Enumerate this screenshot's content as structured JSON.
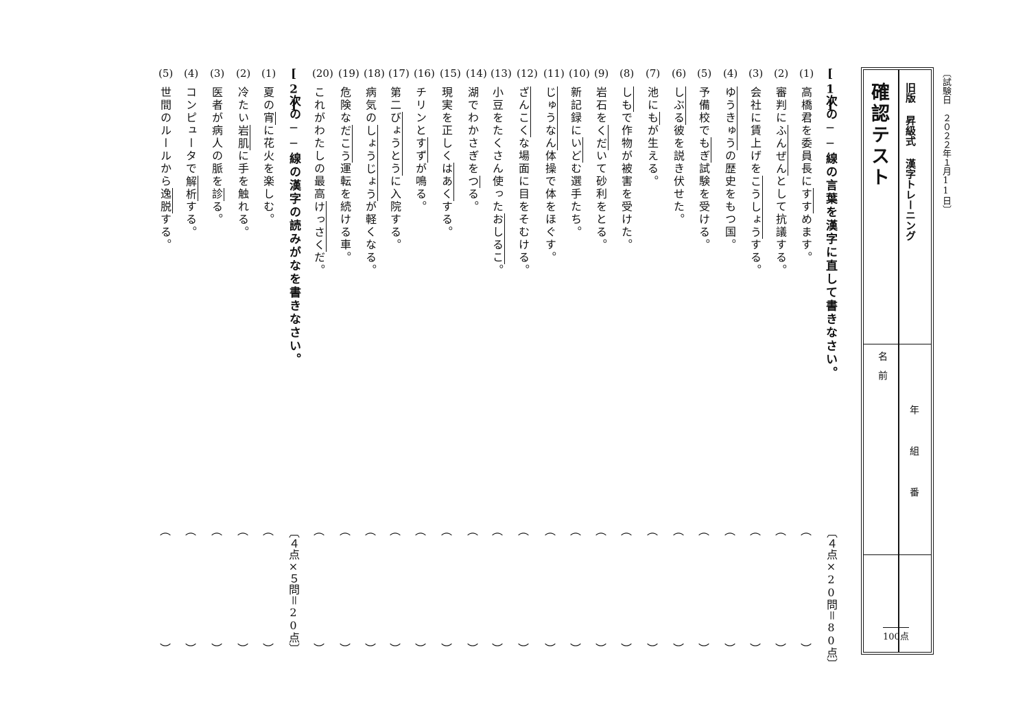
{
  "test_date": "〔試験日　２０２２年１月11日〕",
  "header": {
    "series": "旧版 昇級式 漢字トレーニング",
    "title": "確認テスト",
    "name_label": "名　前",
    "class_label": "年　　　組　　　番",
    "score_label": "100点"
  },
  "section1": {
    "label": "[1]",
    "instruction": "次の──線の言葉を漢字に直して書きなさい。",
    "points": "〔４点×20問＝80点〕",
    "items": [
      {
        "n": "(1)",
        "pre": "高橋君を委員長に",
        "u": "すす",
        "post": "めます。"
      },
      {
        "n": "(2)",
        "pre": "審判に",
        "u": "ふんぜん",
        "post": "として抗議する。"
      },
      {
        "n": "(3)",
        "pre": "会社に賃上げを",
        "u": "こうしょう",
        "post": "する。"
      },
      {
        "n": "(4)",
        "pre": "",
        "u": "ゆうきゅう",
        "post": "の歴史をもつ国。"
      },
      {
        "n": "(5)",
        "pre": "予備校で",
        "u": "もぎ",
        "post": "試験を受ける。"
      },
      {
        "n": "(6)",
        "pre": "",
        "u": "しぶる",
        "post": "彼を説き伏せた。"
      },
      {
        "n": "(7)",
        "pre": "池に",
        "u": "も",
        "post": "が生える。"
      },
      {
        "n": "(8)",
        "pre": "",
        "u": "しも",
        "post": "で作物が被害を受けた。"
      },
      {
        "n": "(9)",
        "pre": "岩石を",
        "u": "くだ",
        "post": "いて砂利をとる。"
      },
      {
        "n": "(10)",
        "pre": "新記録に",
        "u": "いど",
        "post": "む選手たち。"
      },
      {
        "n": "(11)",
        "pre": "",
        "u": "じゅうなん",
        "post": "体操で体をほぐす。"
      },
      {
        "n": "(12)",
        "pre": "",
        "u": "ざんこく",
        "post": "な場面に目をそむける。"
      },
      {
        "n": "(13)",
        "pre": "小豆をたくさん使った",
        "u": "おしるこ",
        "post": "。"
      },
      {
        "n": "(14)",
        "pre": "湖でわかさぎを",
        "u": "つ",
        "post": "る。"
      },
      {
        "n": "(15)",
        "pre": "現実を正しく",
        "u": "はあく",
        "post": "する。"
      },
      {
        "n": "(16)",
        "pre": "チリンと",
        "u": "すず",
        "post": "が鳴る。"
      },
      {
        "n": "(17)",
        "pre": "第二",
        "u": "びょうとう",
        "post": "に入院する。"
      },
      {
        "n": "(18)",
        "pre": "病気の",
        "u": "しょうじょう",
        "post": "が軽くなる。"
      },
      {
        "n": "(19)",
        "pre": "危険な",
        "u": "だこう",
        "post": "運転を続ける車。"
      },
      {
        "n": "(20)",
        "pre": "これがわたしの最高",
        "u": "けっさく",
        "post": "だ。"
      }
    ]
  },
  "section2": {
    "label": "[2]",
    "instruction": "次の──線の漢字の読みがなを書きなさい。",
    "points": "〔４点×５問＝20点〕",
    "items": [
      {
        "n": "(1)",
        "pre": "夏の",
        "u": "宵",
        "post": "に花火を楽しむ。"
      },
      {
        "n": "(2)",
        "pre": "冷たい",
        "u": "岩肌",
        "post": "に手を触れる。"
      },
      {
        "n": "(3)",
        "pre": "医者が病人の脈を",
        "u": "診",
        "post": "る。"
      },
      {
        "n": "(4)",
        "pre": "コンピュータで",
        "u": "解析",
        "post": "する。"
      },
      {
        "n": "(5)",
        "pre": "世間のルールから",
        "u": "逸脱",
        "post": "する。"
      }
    ]
  },
  "answer_bracket": {
    "open": "︵",
    "close": "︶"
  }
}
